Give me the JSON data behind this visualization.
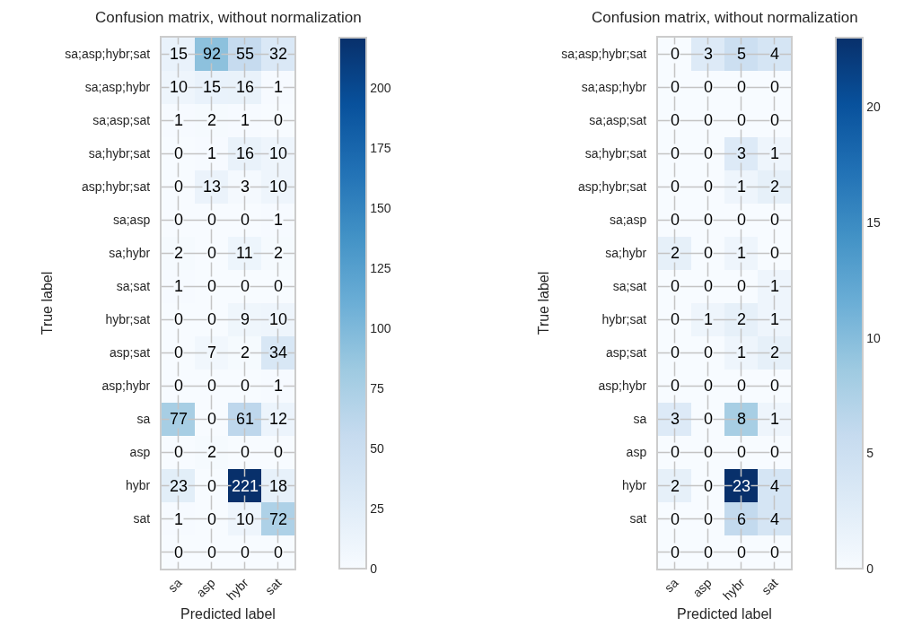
{
  "chart_data": [
    {
      "type": "heatmap",
      "title": "Confusion matrix, without normalization",
      "xlabel": "Predicted label",
      "ylabel": "True label",
      "categories": [
        "sa",
        "asp",
        "hybr",
        "sat"
      ],
      "y_categories": [
        "sa;asp;hybr;sat",
        "sa;asp;hybr",
        "sa;asp;sat",
        "sa;hybr;sat",
        "asp;hybr;sat",
        "sa;asp",
        "sa;hybr",
        "sa;sat",
        "hybr;sat",
        "asp;sat",
        "asp;hybr",
        "sa",
        "asp",
        "hybr",
        "sat",
        null
      ],
      "cells": [
        [
          15,
          92,
          55,
          32
        ],
        [
          10,
          15,
          16,
          1
        ],
        [
          1,
          2,
          1,
          0
        ],
        [
          0,
          1,
          16,
          10
        ],
        [
          0,
          13,
          3,
          10
        ],
        [
          0,
          0,
          0,
          1
        ],
        [
          2,
          0,
          11,
          2
        ],
        [
          1,
          0,
          0,
          0
        ],
        [
          0,
          0,
          9,
          10
        ],
        [
          0,
          7,
          2,
          34
        ],
        [
          0,
          0,
          0,
          1
        ],
        [
          77,
          0,
          61,
          12
        ],
        [
          0,
          2,
          0,
          0
        ],
        [
          23,
          0,
          221,
          18
        ],
        [
          1,
          0,
          10,
          72
        ],
        [
          0,
          0,
          0,
          0
        ]
      ],
      "clim": [
        0,
        221
      ],
      "cticks": [
        0,
        25,
        50,
        75,
        100,
        125,
        150,
        175,
        200
      ],
      "data_labels": true,
      "grid": true
    },
    {
      "type": "heatmap",
      "title": "Confusion matrix, without normalization",
      "xlabel": "Predicted label",
      "ylabel": "True label",
      "categories": [
        "sa",
        "asp",
        "hybr",
        "sat"
      ],
      "y_categories": [
        "sa;asp;hybr;sat",
        "sa;asp;hybr",
        "sa;asp;sat",
        "sa;hybr;sat",
        "asp;hybr;sat",
        "sa;asp",
        "sa;hybr",
        "sa;sat",
        "hybr;sat",
        "asp;sat",
        "asp;hybr",
        "sa",
        "asp",
        "hybr",
        "sat",
        null
      ],
      "cells": [
        [
          0,
          3,
          5,
          4
        ],
        [
          0,
          0,
          0,
          0
        ],
        [
          0,
          0,
          0,
          0
        ],
        [
          0,
          0,
          3,
          1
        ],
        [
          0,
          0,
          1,
          2
        ],
        [
          0,
          0,
          0,
          0
        ],
        [
          2,
          0,
          1,
          0
        ],
        [
          0,
          0,
          0,
          1
        ],
        [
          0,
          1,
          2,
          1
        ],
        [
          0,
          0,
          1,
          2
        ],
        [
          0,
          0,
          0,
          0
        ],
        [
          3,
          0,
          8,
          1
        ],
        [
          0,
          0,
          0,
          0
        ],
        [
          2,
          0,
          23,
          4
        ],
        [
          0,
          0,
          6,
          4
        ],
        [
          0,
          0,
          0,
          0
        ]
      ],
      "clim": [
        0,
        23
      ],
      "cticks": [
        0,
        5,
        10,
        15,
        20
      ],
      "data_labels": true,
      "grid": true
    }
  ]
}
